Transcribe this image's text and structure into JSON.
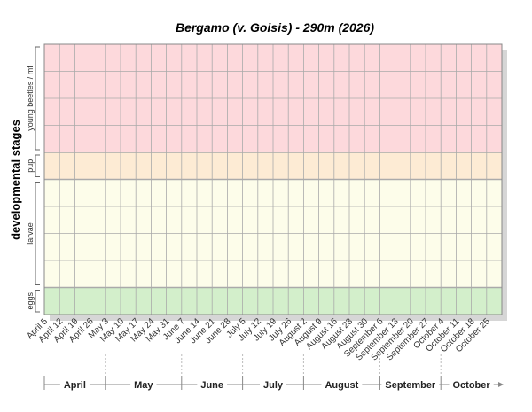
{
  "chart_data": {
    "type": "stage-bands",
    "title": "Bergamo (v. Goisis) - 290m (2026)",
    "y_axis_label": "developmental stages",
    "bands": [
      {
        "name": "young beetles / mf",
        "color": "#fdd9dc"
      },
      {
        "name": "pup",
        "color": "#fdebd4"
      },
      {
        "name": "larvae",
        "color": "#fdfdea"
      },
      {
        "name": "eggs",
        "color": "#d3efcb"
      }
    ],
    "categories": [
      "April 5",
      "April 12",
      "April 19",
      "April 26",
      "May 3",
      "May 10",
      "May 17",
      "May 24",
      "May 31",
      "June 7",
      "June 14",
      "June 21",
      "June 28",
      "July 5",
      "July 12",
      "July 19",
      "July 26",
      "August 2",
      "August 9",
      "August 16",
      "August 23",
      "August 30",
      "September 6",
      "September 13",
      "September 20",
      "September 27",
      "October 4",
      "October 11",
      "October 18",
      "October 25"
    ],
    "months": [
      "April",
      "May",
      "June",
      "July",
      "August",
      "September",
      "October"
    ]
  }
}
